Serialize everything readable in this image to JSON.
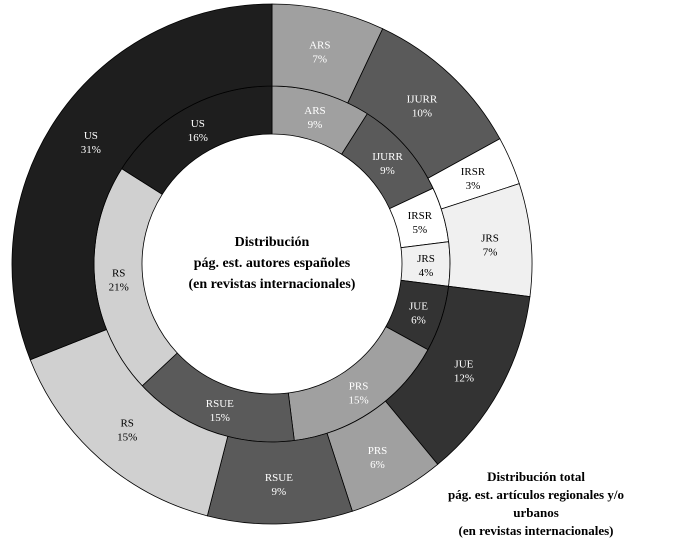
{
  "chart_data": {
    "type": "pie",
    "variant": "double-donut",
    "center_title": [
      "Distribución",
      "pág. est. autores españoles",
      "(en revistas internacionales)"
    ],
    "outer_caption": [
      "Distribución total",
      "pág. est. artículos regionales y/o",
      "urbanos",
      "(en revistas internacionales)"
    ],
    "rings": [
      {
        "name": "inner",
        "slices": [
          {
            "label": "ARS",
            "value": 9,
            "text": "9%",
            "color": "#a0a0a0",
            "text_color": "#ffffff"
          },
          {
            "label": "IJURR",
            "value": 9,
            "text": "9%",
            "color": "#5a5a5a",
            "text_color": "#ffffff"
          },
          {
            "label": "IRSR",
            "value": 5,
            "text": "5%",
            "color": "#ffffff",
            "text_color": "#000000"
          },
          {
            "label": "JRS",
            "value": 4,
            "text": "4%",
            "color": "#f0f0f0",
            "text_color": "#000000"
          },
          {
            "label": "JUE",
            "value": 6,
            "text": "6%",
            "color": "#333333",
            "text_color": "#ffffff"
          },
          {
            "label": "PRS",
            "value": 15,
            "text": "15%",
            "color": "#a0a0a0",
            "text_color": "#ffffff"
          },
          {
            "label": "RSUE",
            "value": 15,
            "text": "15%",
            "color": "#5a5a5a",
            "text_color": "#ffffff"
          },
          {
            "label": "RS",
            "value": 21,
            "text": "21%",
            "color": "#d0d0d0",
            "text_color": "#000000"
          },
          {
            "label": "US",
            "value": 16,
            "text": "16%",
            "color": "#1e1e1e",
            "text_color": "#ffffff"
          }
        ]
      },
      {
        "name": "outer",
        "slices": [
          {
            "label": "ARS",
            "value": 7,
            "text": "7%",
            "color": "#a0a0a0",
            "text_color": "#ffffff"
          },
          {
            "label": "IJURR",
            "value": 10,
            "text": "10%",
            "color": "#5a5a5a",
            "text_color": "#ffffff"
          },
          {
            "label": "IRSR",
            "value": 3,
            "text": "3%",
            "color": "#ffffff",
            "text_color": "#000000"
          },
          {
            "label": "JRS",
            "value": 7,
            "text": "7%",
            "color": "#f0f0f0",
            "text_color": "#000000"
          },
          {
            "label": "JUE",
            "value": 12,
            "text": "12%",
            "color": "#333333",
            "text_color": "#ffffff"
          },
          {
            "label": "PRS",
            "value": 6,
            "text": "6%",
            "color": "#a0a0a0",
            "text_color": "#ffffff"
          },
          {
            "label": "RSUE",
            "value": 9,
            "text": "9%",
            "color": "#5a5a5a",
            "text_color": "#ffffff"
          },
          {
            "label": "RS",
            "value": 15,
            "text": "15%",
            "color": "#d0d0d0",
            "text_color": "#000000"
          },
          {
            "label": "US",
            "value": 31,
            "text": "31%",
            "color": "#1e1e1e",
            "text_color": "#ffffff"
          }
        ]
      }
    ]
  }
}
